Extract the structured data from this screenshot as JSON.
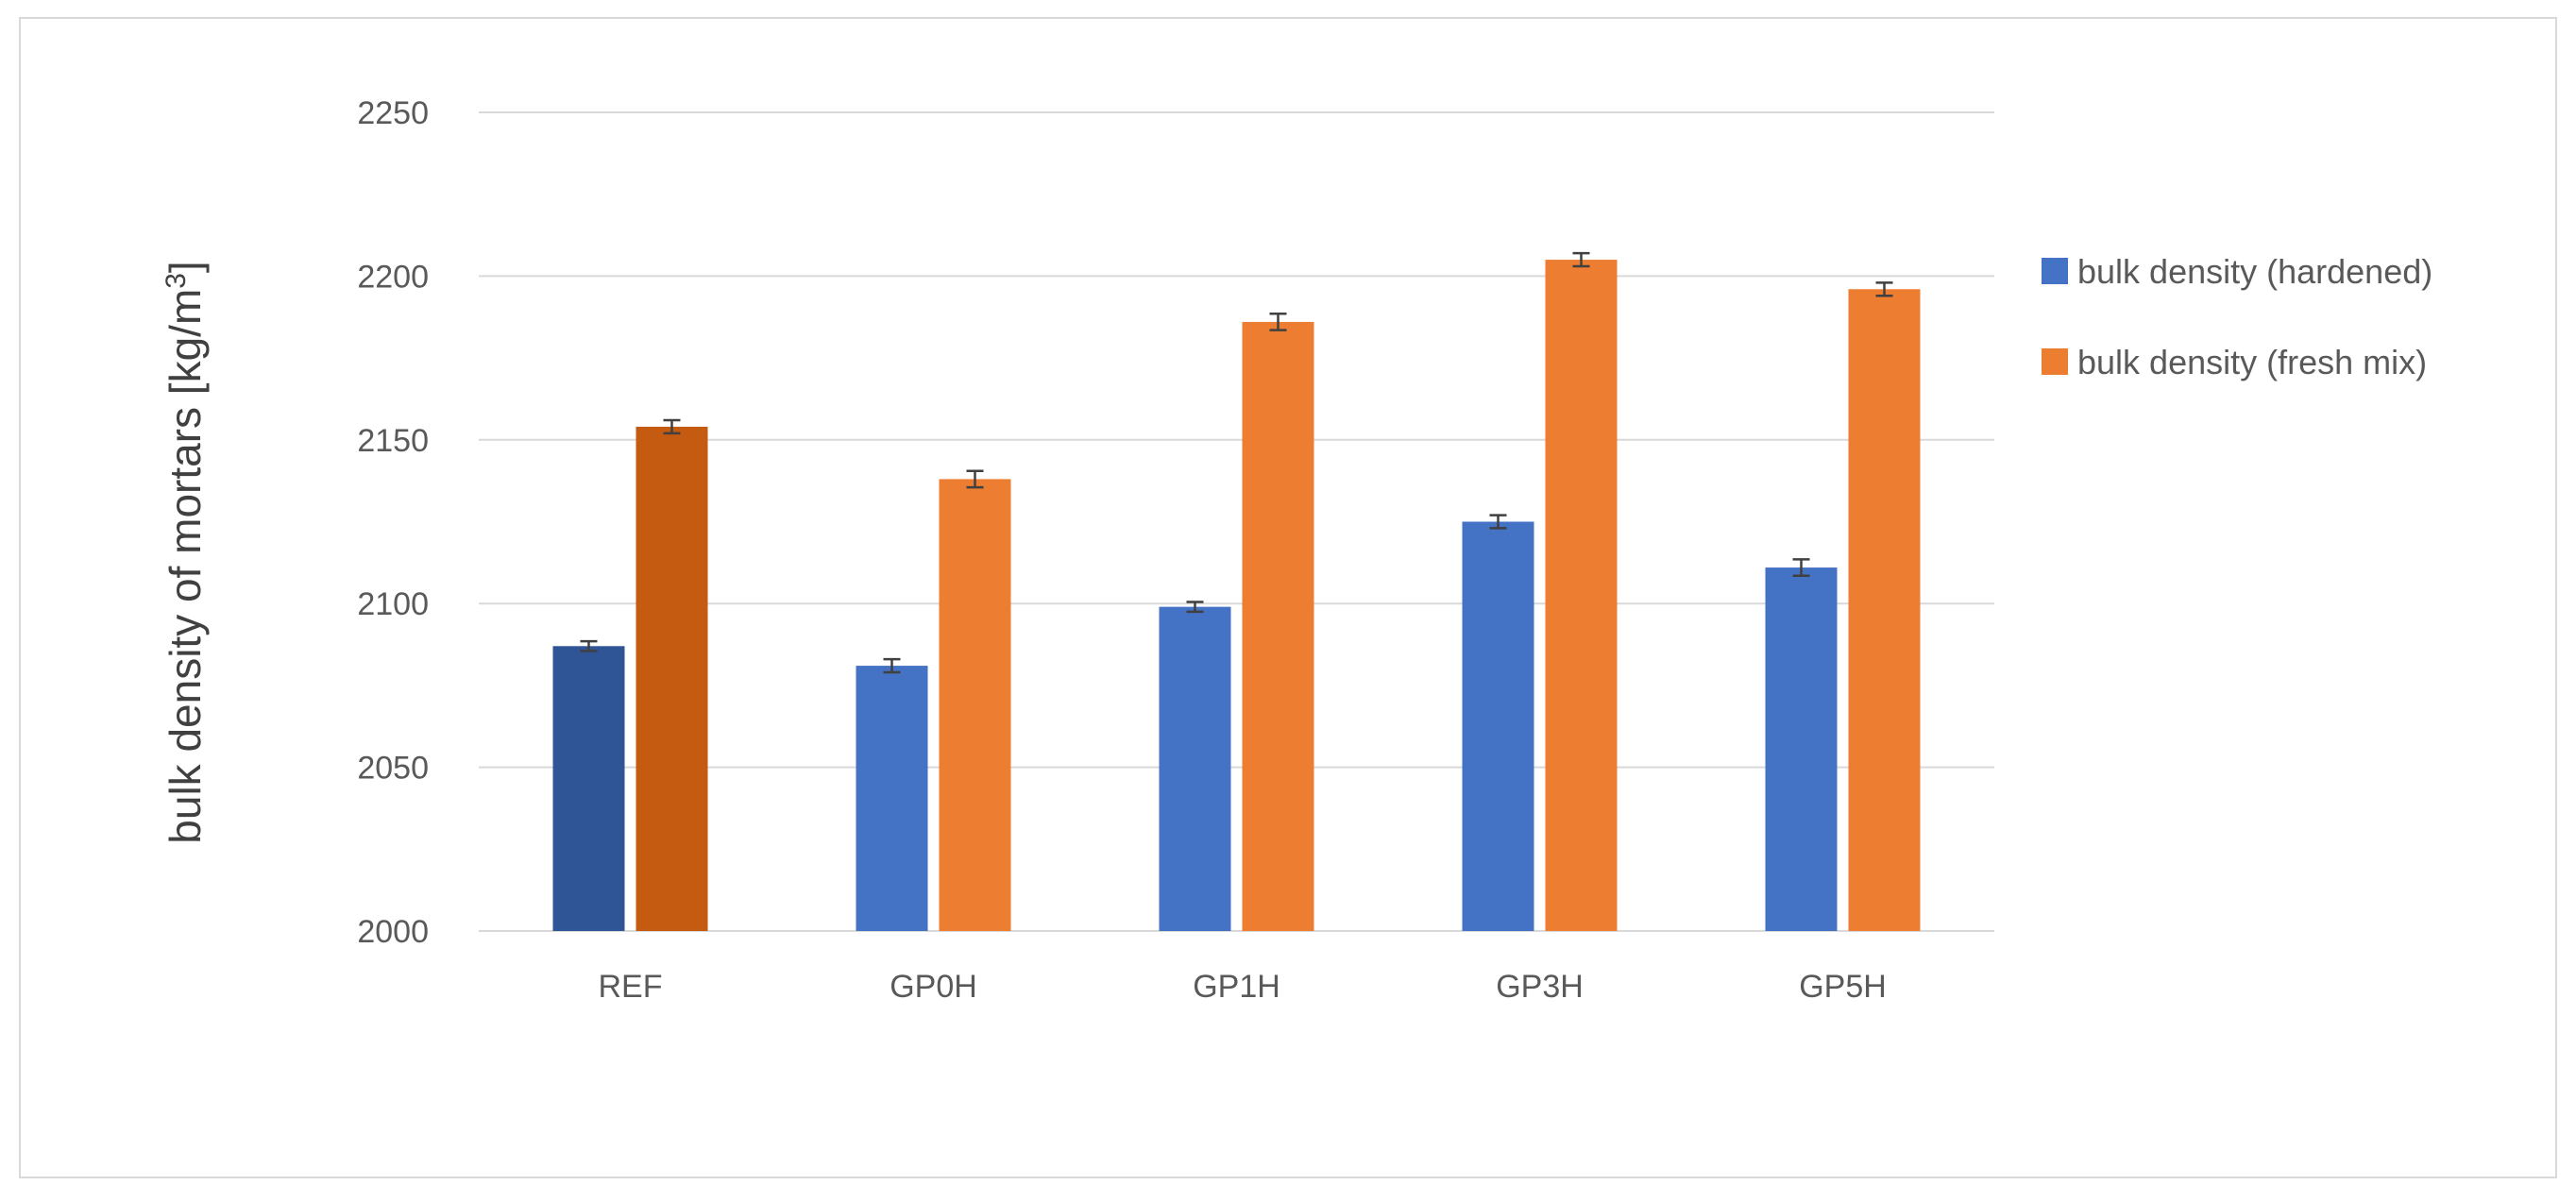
{
  "chart_data": {
    "type": "bar",
    "title": "",
    "xlabel": "",
    "ylabel": "bulk density of mortars [kg/m",
    "ylabel_superscript": "3",
    "ylabel_suffix": "]",
    "categories": [
      "REF",
      "GP0H",
      "GP1H",
      "GP3H",
      "GP5H"
    ],
    "series": [
      {
        "name": "bulk density (hardened)",
        "values": [
          2087,
          2081,
          2099,
          2125,
          2111
        ],
        "errors": [
          1.5,
          2,
          1.5,
          2,
          2.5
        ],
        "color": "#4472c4",
        "highlight_color": "#2f5597"
      },
      {
        "name": "bulk density (fresh mix)",
        "values": [
          2154,
          2138,
          2186,
          2205,
          2196
        ],
        "errors": [
          2,
          2.5,
          2.5,
          2,
          2
        ],
        "color": "#ed7d31",
        "highlight_color": "#c55a11"
      }
    ],
    "highlighted_category_index": 0,
    "ylim": [
      2000,
      2250
    ],
    "yticks": [
      2000,
      2050,
      2100,
      2150,
      2200,
      2250
    ],
    "grid": true,
    "legend_position": "right"
  }
}
